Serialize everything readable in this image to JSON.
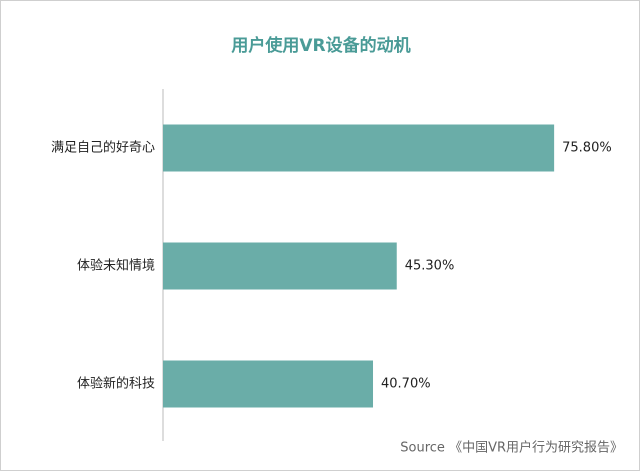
{
  "chart_data": {
    "type": "bar",
    "orientation": "horizontal",
    "title": "用户使用VR设备的动机",
    "categories": [
      "满足自己的好奇心",
      "体验未知情境",
      "体验新的科技"
    ],
    "values": [
      75.8,
      45.3,
      40.7
    ],
    "value_labels": [
      "75.80%",
      "45.30%",
      "40.70%"
    ],
    "color": "#6aada8",
    "source": "Source 《中国VR用户行为研究报告》"
  }
}
